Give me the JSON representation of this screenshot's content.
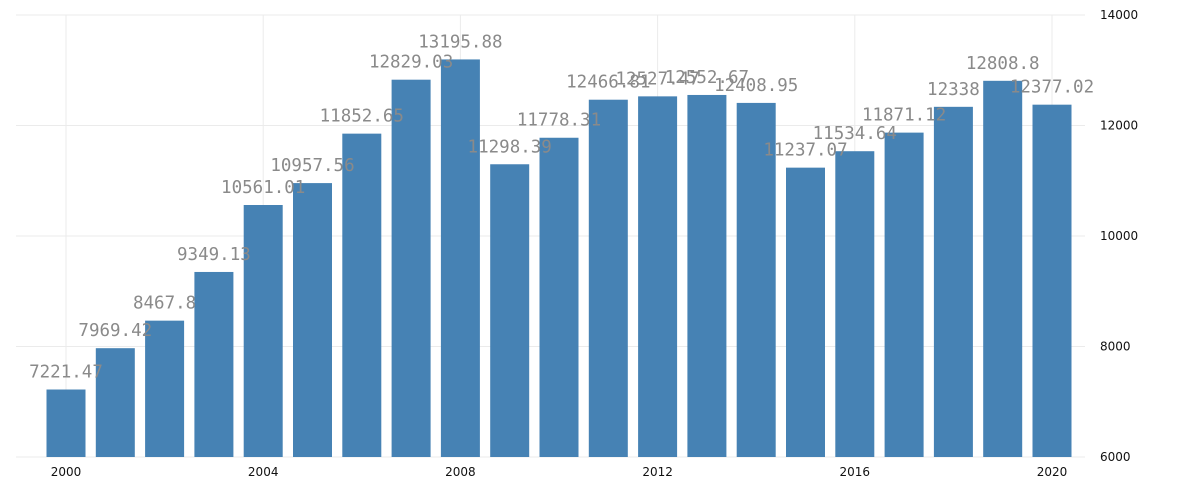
{
  "chart_data": {
    "type": "bar",
    "title": "",
    "xlabel": "",
    "ylabel": "",
    "x": [
      2000,
      2001,
      2002,
      2003,
      2004,
      2005,
      2006,
      2007,
      2008,
      2009,
      2010,
      2011,
      2012,
      2013,
      2014,
      2015,
      2016,
      2017,
      2018,
      2019,
      2020
    ],
    "values": [
      7221.47,
      7969.42,
      8467.8,
      9349.13,
      10561.01,
      10957.56,
      11852.65,
      12829.03,
      13195.88,
      11298.39,
      11778.31,
      12466.81,
      12527.47,
      12552.67,
      12408.95,
      11237.07,
      11534.64,
      11871.12,
      12338,
      12808.8,
      12377.02
    ],
    "value_labels": [
      "7221.47",
      "7969.42",
      "8467.8",
      "9349.13",
      "10561.01",
      "10957.56",
      "11852.65",
      "12829.03",
      "13195.88",
      "11298.39",
      "11778.31",
      "12466.81",
      "12527.47",
      "12552.67",
      "12408.95",
      "11237.07",
      "11534.64",
      "11871.12",
      "12338",
      "12808.8",
      "12377.02"
    ],
    "x_ticks": [
      "2000",
      "2004",
      "2008",
      "2012",
      "2016",
      "2020"
    ],
    "y_ticks": [
      "6000",
      "8000",
      "10000",
      "12000",
      "14000"
    ],
    "ylim": [
      6000,
      14000
    ],
    "grid": true,
    "y_axis_position": "right",
    "bar_color": "#4682b4"
  }
}
